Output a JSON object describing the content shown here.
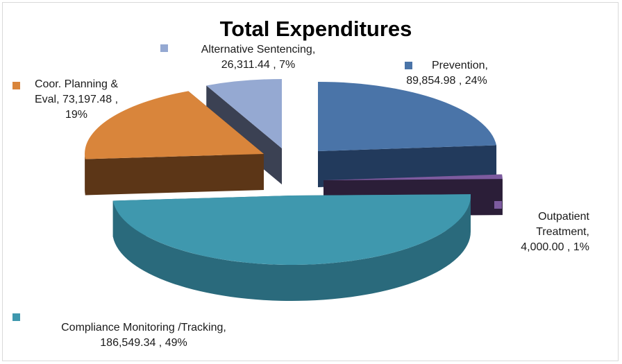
{
  "chart_data": {
    "type": "pie",
    "style": "3d-exploded",
    "title": "Total Expenditures",
    "legend": "none",
    "slices": [
      {
        "name": "Prevention",
        "value": 89854.98,
        "percent": 24,
        "label_lines": [
          "Prevention,",
          "89,854.98 , 24%"
        ],
        "color": "#4a74a8",
        "side": "#223a5c"
      },
      {
        "name": "Outpatient Treatment",
        "value": 4000.0,
        "percent": 1,
        "label_lines": [
          "Outpatient",
          "Treatment,",
          "4,000.00 , 1%"
        ],
        "color": "#7d5b9f",
        "side": "#2b1e38"
      },
      {
        "name": "Compliance Monitoring /Tracking",
        "value": 186549.34,
        "percent": 49,
        "label_lines": [
          "Compliance Monitoring /Tracking,",
          "186,549.34 , 49%"
        ],
        "color": "#3f98ae",
        "side": "#2a6a7c"
      },
      {
        "name": "Coor. Planning & Eval",
        "value": 73197.48,
        "percent": 19,
        "label_lines": [
          "Coor. Planning &",
          "Eval, 73,197.48 ,",
          "19%"
        ],
        "color": "#d9853b",
        "side": "#5c3617"
      },
      {
        "name": "Alternative Sentencing",
        "value": 26311.44,
        "percent": 7,
        "label_lines": [
          "Alternative Sentencing,",
          "26,311.44 , 7%"
        ],
        "color": "#95a9d2",
        "side": "#3b4153"
      }
    ]
  }
}
